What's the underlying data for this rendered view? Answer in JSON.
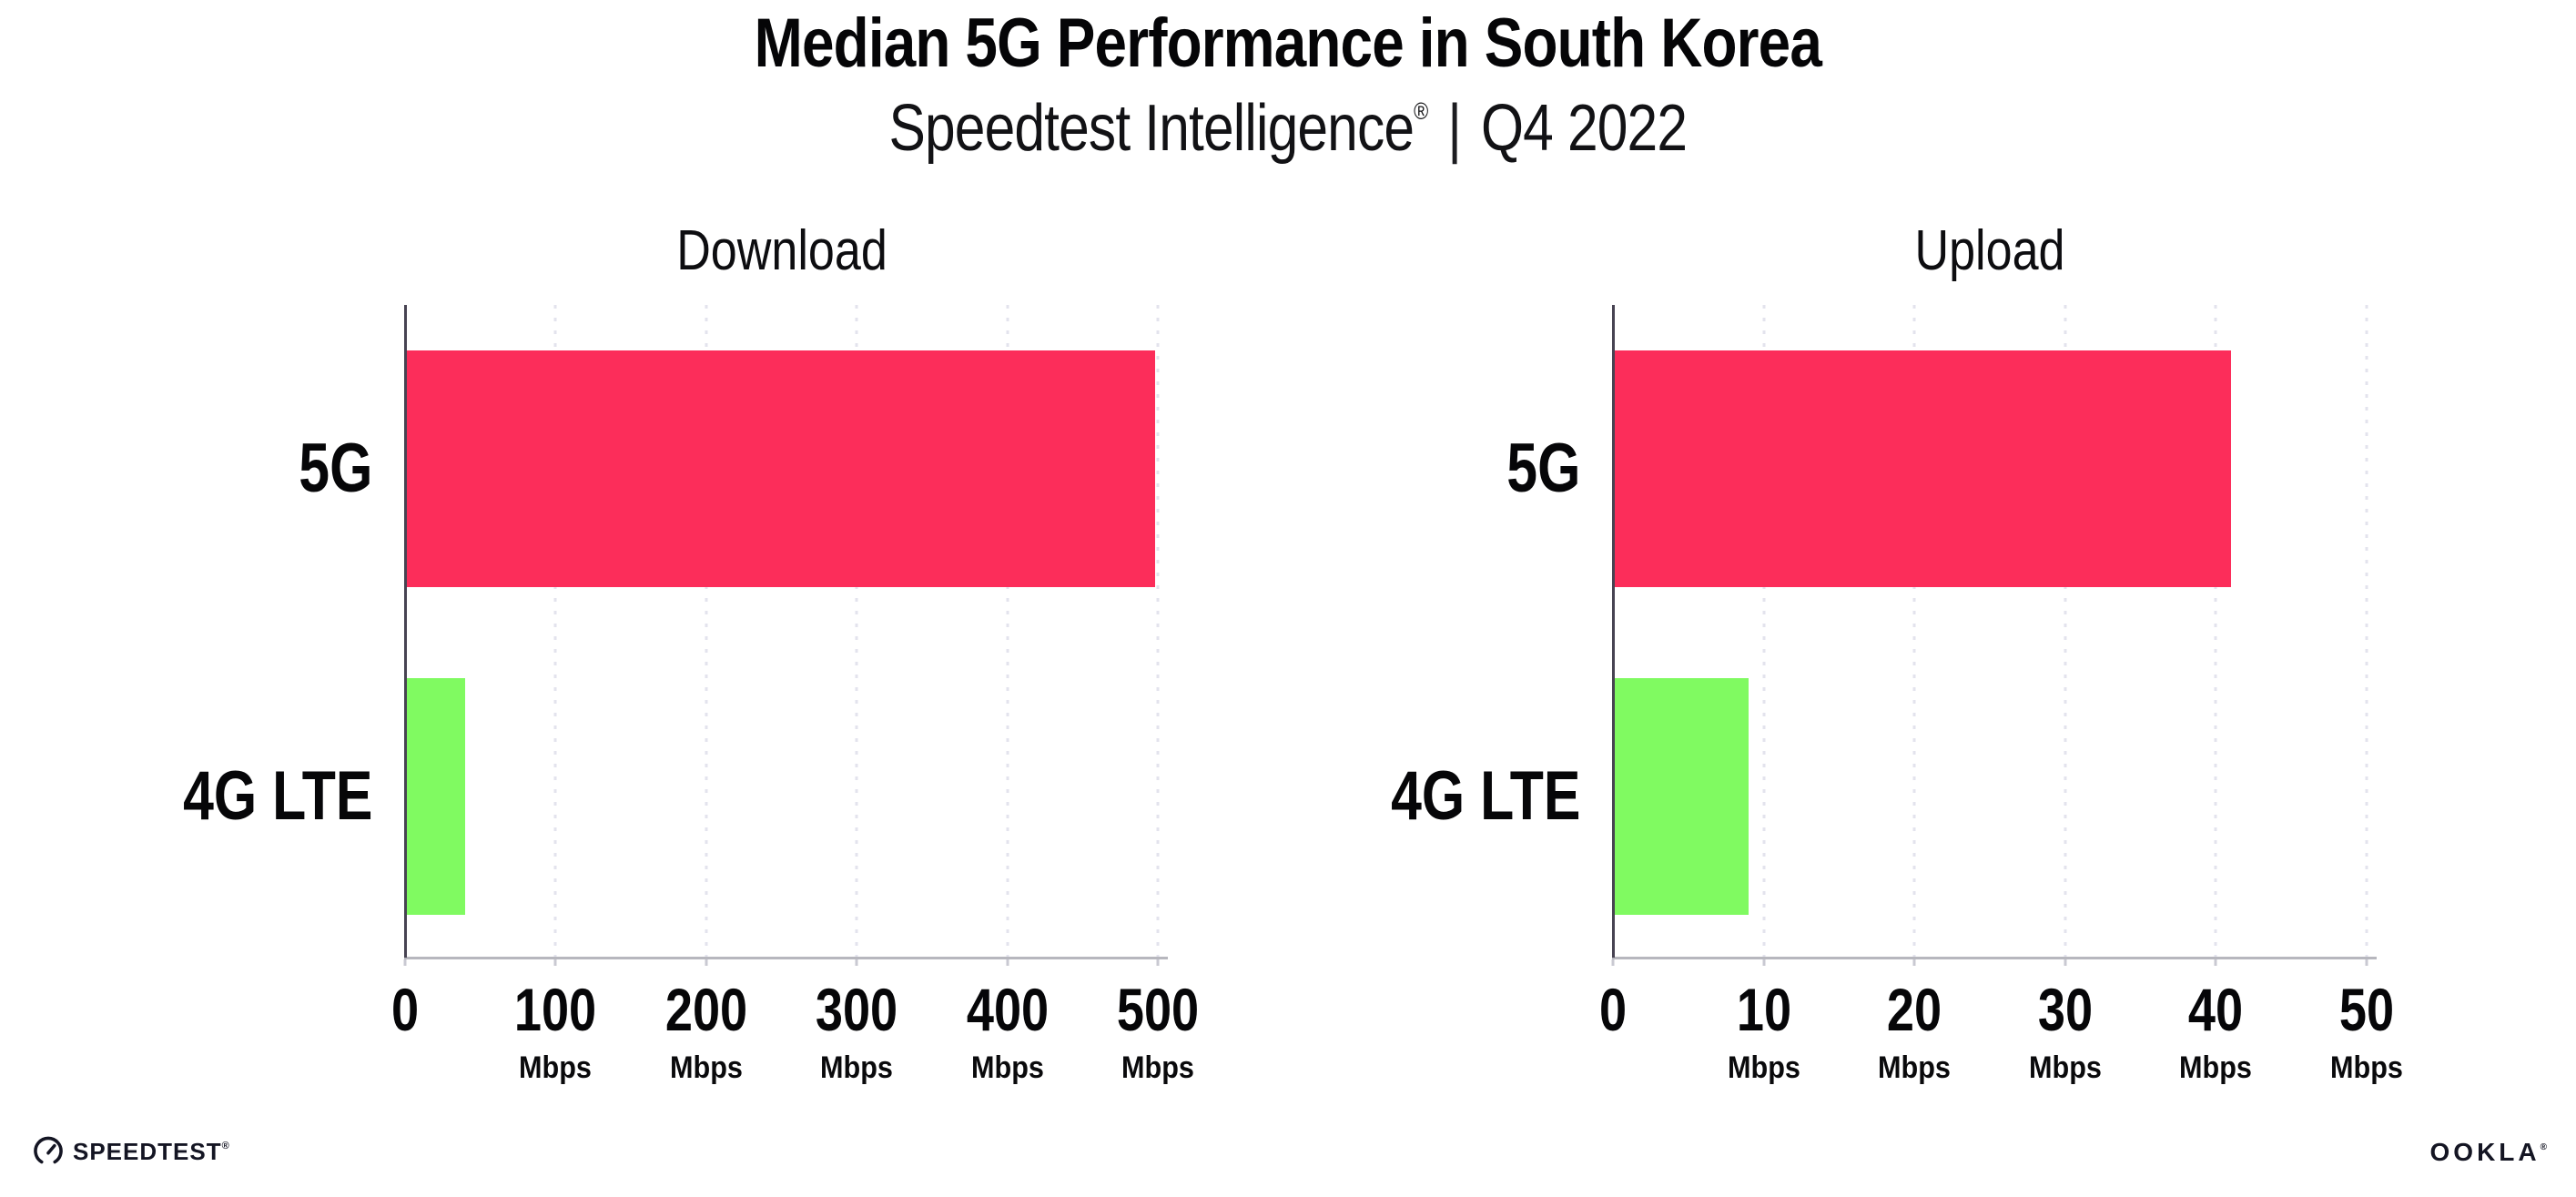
{
  "header": {
    "title": "Median 5G Performance in South Korea",
    "subtitle": {
      "brand": "Speedtest Intelligence",
      "registered_mark": "®",
      "divider": "|",
      "period": "Q4 2022"
    }
  },
  "chart_data": [
    {
      "type": "bar",
      "orientation": "horizontal",
      "title": "Download",
      "unit": "Mbps",
      "categories": [
        "5G",
        "4G LTE"
      ],
      "values": [
        498,
        40
      ],
      "xlim": [
        0,
        500
      ],
      "xticks": [
        0,
        100,
        200,
        300,
        400,
        500
      ],
      "bar_colors": [
        "#fc2d5a",
        "#80fa61"
      ],
      "grid": "dotted vertical light-gray at each labeled tick",
      "legend": "none"
    },
    {
      "type": "bar",
      "orientation": "horizontal",
      "title": "Upload",
      "unit": "Mbps",
      "categories": [
        "5G",
        "4G LTE"
      ],
      "values": [
        41,
        9
      ],
      "xlim": [
        0,
        50
      ],
      "xticks": [
        0,
        10,
        20,
        30,
        40,
        50
      ],
      "bar_colors": [
        "#fc2d5a",
        "#80fa61"
      ],
      "grid": "dotted vertical light-gray at each labeled tick",
      "legend": "none"
    }
  ],
  "footer": {
    "speedtest": {
      "label": "SPEEDTEST",
      "mark": "®"
    },
    "ookla": {
      "label": "OOKLA",
      "mark": "®"
    }
  },
  "colors": {
    "bar_5g": "#fc2d5a",
    "bar_4g_lte": "#80fa61",
    "y_axis": "#474352",
    "x_axis": "#b7b7be",
    "gridline": "#e3e3ed",
    "text": "#0a0a0c",
    "background": "#ffffff"
  }
}
